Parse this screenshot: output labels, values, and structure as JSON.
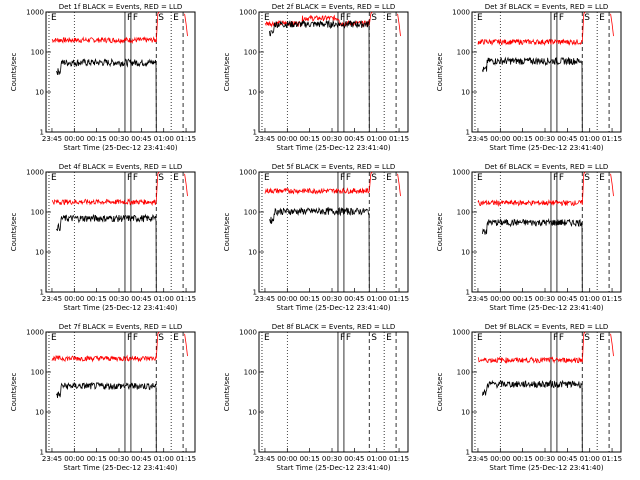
{
  "chart_data": {
    "type": "line",
    "layout_rows": 3,
    "layout_cols": 3,
    "ylabel": "Counts/sec",
    "xlabel": "Start Time (25-Dec-12 23:41:40)",
    "y_scale": "log",
    "ylim": [
      1,
      1000
    ],
    "y_ticks": [
      1,
      10,
      100,
      1000
    ],
    "x_ticks": [
      "23:45",
      "00:00",
      "00:15",
      "00:30",
      "00:45",
      "01:00",
      "01:15"
    ],
    "markers": [
      {
        "label": "E",
        "x": "23:43",
        "style": "dotted"
      },
      {
        "label": "F",
        "x": "00:34",
        "style": "solid"
      },
      {
        "label": "F",
        "x": "00:38",
        "style": "solid"
      },
      {
        "label": "S",
        "x": "00:55",
        "style": "dashed"
      },
      {
        "label": "E",
        "x": "01:05",
        "style": "dotted"
      },
      {
        "label": "",
        "x": "01:13",
        "style": "dashed"
      }
    ],
    "extra_dotted_x": "00:00",
    "panels": [
      {
        "title": "Det 1f BLACK = Events, RED = LLD",
        "events": 55,
        "lld": 200,
        "has_events": true
      },
      {
        "title": "Det 2f BLACK = Events, RED = LLD",
        "events": 500,
        "lld": 520,
        "has_events": true,
        "bump": true
      },
      {
        "title": "Det 3f BLACK = Events, RED = LLD",
        "events": 60,
        "lld": 180,
        "has_events": true
      },
      {
        "title": "Det 4f BLACK = Events, RED = LLD",
        "events": 70,
        "lld": 180,
        "has_events": true
      },
      {
        "title": "Det 5f BLACK = Events, RED = LLD",
        "events": 105,
        "lld": 340,
        "has_events": true
      },
      {
        "title": "Det 6f BLACK = Events, RED = LLD",
        "events": 55,
        "lld": 170,
        "has_events": true
      },
      {
        "title": "Det 7f BLACK = Events, RED = LLD",
        "events": 45,
        "lld": 220,
        "has_events": true
      },
      {
        "title": "Det 8f BLACK = Events, RED = LLD",
        "events": null,
        "lld": null,
        "has_events": false
      },
      {
        "title": "Det 9f BLACK = Events, RED = LLD",
        "events": 50,
        "lld": 200,
        "has_events": true
      }
    ],
    "series": [
      {
        "name": "BLACK = Events",
        "color": "#000000"
      },
      {
        "name": "RED = LLD",
        "color": "#ff0000"
      }
    ]
  }
}
